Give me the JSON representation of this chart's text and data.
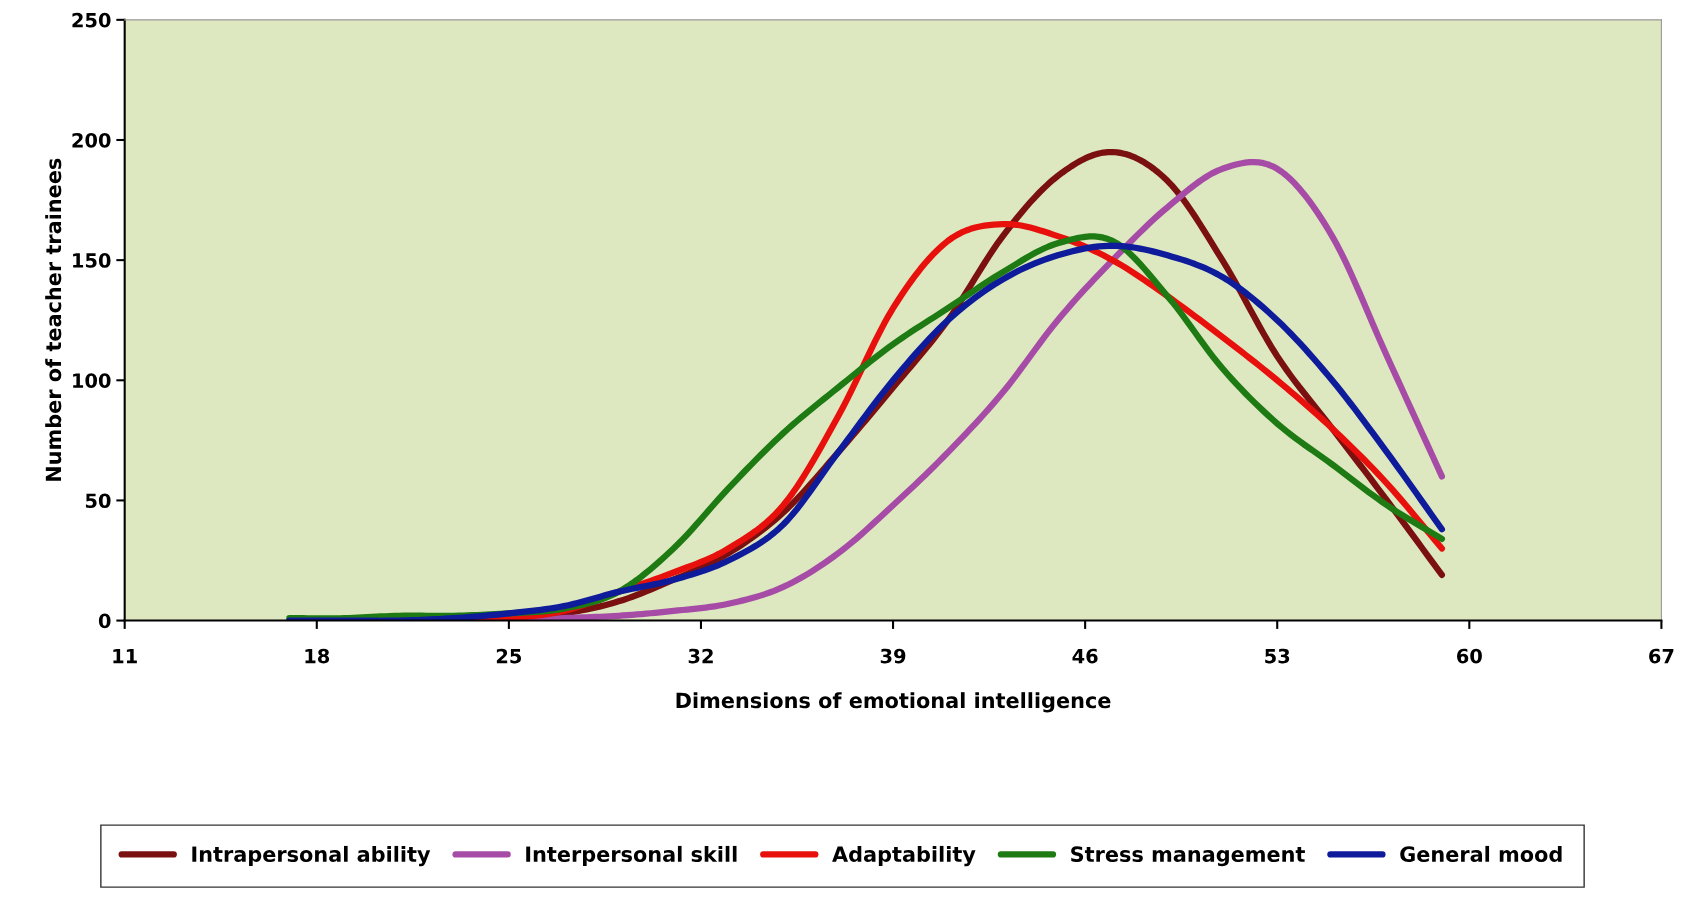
{
  "chart_data": {
    "type": "line",
    "xlabel": "Dimensions of emotional intelligence",
    "ylabel": "Number of teacher trainees",
    "x": [
      17,
      19,
      21,
      23,
      25,
      27,
      29,
      31,
      33,
      35,
      37,
      39,
      41,
      43,
      45,
      47,
      49,
      51,
      53,
      55,
      57,
      59
    ],
    "series": [
      {
        "name": "Intrapersonal ability",
        "color": "#7b1010",
        "values": [
          null,
          null,
          0,
          0,
          1,
          3,
          8,
          17,
          28,
          45,
          70,
          97,
          125,
          160,
          185,
          195,
          183,
          150,
          110,
          80,
          50,
          19
        ]
      },
      {
        "name": "Interpersonal skill",
        "color": "#a64ca6",
        "values": [
          null,
          null,
          null,
          0,
          0,
          1,
          2,
          4,
          7,
          14,
          28,
          48,
          70,
          95,
          125,
          150,
          172,
          188,
          188,
          160,
          110,
          60
        ]
      },
      {
        "name": "Adaptability",
        "color": "#e8100c",
        "values": [
          null,
          null,
          null,
          0,
          1,
          4,
          12,
          20,
          30,
          48,
          85,
          130,
          158,
          165,
          160,
          150,
          135,
          118,
          100,
          80,
          57,
          30
        ]
      },
      {
        "name": "Stress management",
        "color": "#1e7a12",
        "values": [
          1,
          1,
          2,
          2,
          3,
          5,
          12,
          30,
          55,
          78,
          97,
          115,
          130,
          145,
          157,
          158,
          135,
          105,
          82,
          65,
          48,
          34
        ]
      },
      {
        "name": "General mood",
        "color": "#0e1b9a",
        "values": [
          0,
          0,
          0,
          1,
          3,
          6,
          12,
          17,
          25,
          40,
          70,
          100,
          125,
          142,
          152,
          156,
          152,
          143,
          125,
          100,
          70,
          38
        ]
      }
    ],
    "xlim": [
      11,
      67
    ],
    "xticks": [
      11,
      18,
      25,
      32,
      39,
      46,
      53,
      60,
      67
    ],
    "ylim": [
      0,
      250
    ],
    "yticks": [
      0,
      50,
      100,
      150,
      200,
      250
    ],
    "grid": false,
    "legend": "bottom",
    "marker": "none",
    "line_style": "solid"
  }
}
